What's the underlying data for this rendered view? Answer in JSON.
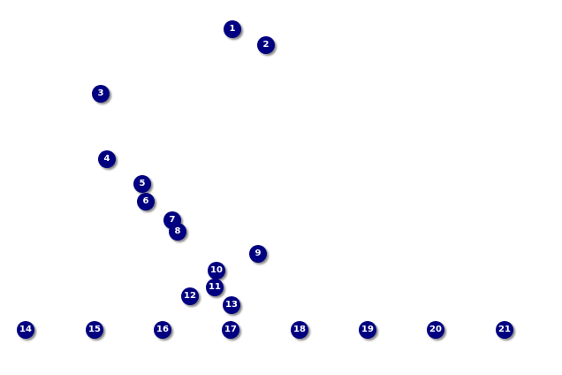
{
  "game": {
    "dot_color": "#000080",
    "dots": [
      {
        "label": "1"
      },
      {
        "label": "2"
      },
      {
        "label": "3"
      },
      {
        "label": "4"
      },
      {
        "label": "5"
      },
      {
        "label": "6"
      },
      {
        "label": "7"
      },
      {
        "label": "8"
      },
      {
        "label": "9"
      },
      {
        "label": "10"
      },
      {
        "label": "11"
      },
      {
        "label": "12"
      },
      {
        "label": "13"
      },
      {
        "label": "14"
      },
      {
        "label": "15"
      },
      {
        "label": "16"
      },
      {
        "label": "17"
      },
      {
        "label": "18"
      },
      {
        "label": "19"
      },
      {
        "label": "20"
      },
      {
        "label": "21"
      }
    ]
  }
}
